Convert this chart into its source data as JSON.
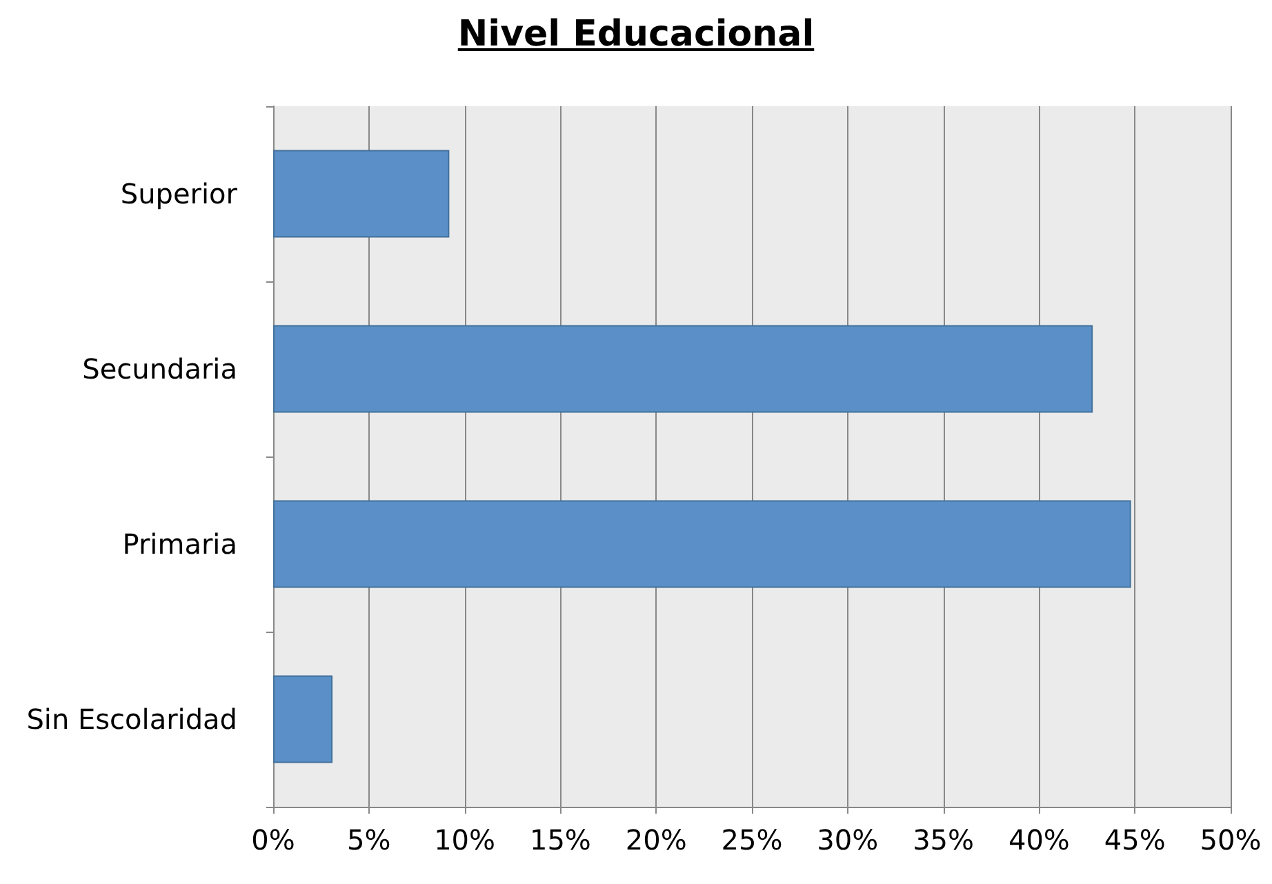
{
  "chart_data": {
    "type": "bar",
    "title": "Nivel Educacional",
    "orientation": "horizontal",
    "categories": [
      "Superior",
      "Secundaria",
      "Primaria",
      "Sin Escolaridad"
    ],
    "values": [
      9.2,
      42.8,
      44.8,
      3.1
    ],
    "color": "#5b8fc7",
    "xlim": [
      0,
      50
    ],
    "xticks": [
      {
        "value": 0,
        "label": "0%"
      },
      {
        "value": 5,
        "label": "5%"
      },
      {
        "value": 10,
        "label": "10%"
      },
      {
        "value": 15,
        "label": "15%"
      },
      {
        "value": 20,
        "label": "20%"
      },
      {
        "value": 25,
        "label": "25%"
      },
      {
        "value": 30,
        "label": "30%"
      },
      {
        "value": 35,
        "label": "35%"
      },
      {
        "value": 40,
        "label": "40%"
      },
      {
        "value": 45,
        "label": "45%"
      },
      {
        "value": 50,
        "label": "50%"
      }
    ],
    "grid": "x"
  }
}
